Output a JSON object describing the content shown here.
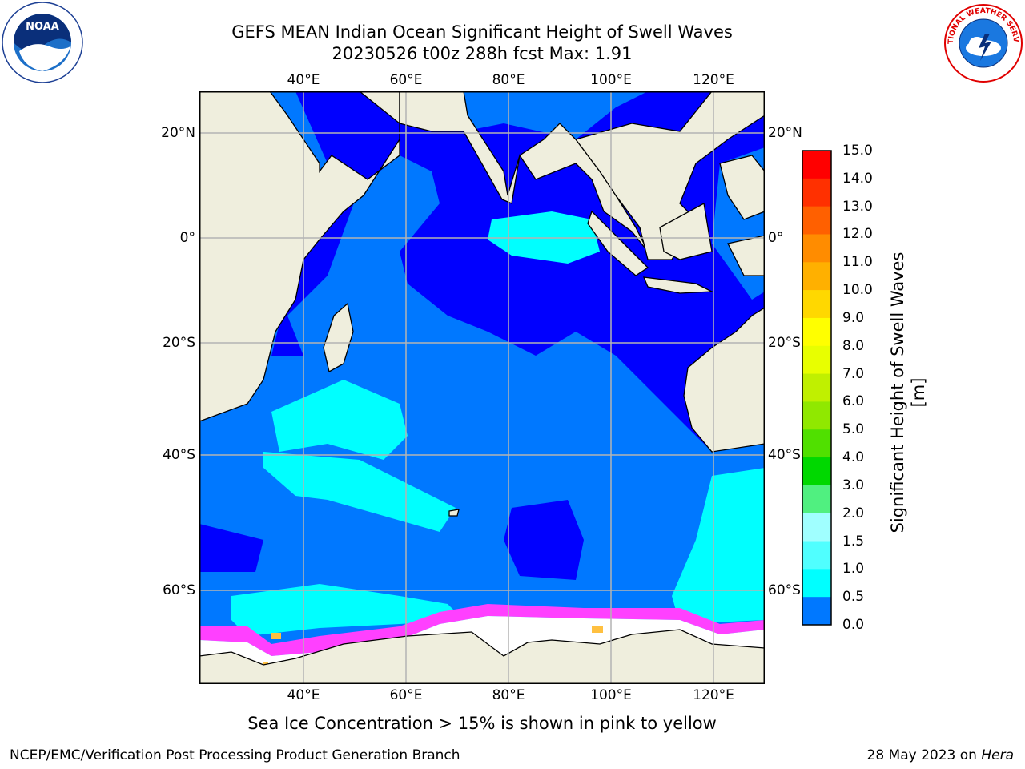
{
  "header": {
    "title_line1": "GEFS MEAN Indian Ocean Significant Height of Swell Waves",
    "title_line2": "20230526 t00z 288h fcst   Max: 1.91"
  },
  "logos": {
    "left": {
      "name": "noaa-logo",
      "text": "NOAA"
    },
    "right": {
      "name": "nws-logo",
      "text": "NATIONAL WEATHER SERVICE"
    }
  },
  "map": {
    "lon_ticks": [
      "40°E",
      "60°E",
      "80°E",
      "100°E",
      "120°E"
    ],
    "lat_ticks": [
      "20°N",
      "0°",
      "20°S",
      "40°S",
      "60°S"
    ],
    "colors": {
      "land": "#efeedd",
      "ocean_dark": "#0000ff",
      "ocean_mid": "#0078ff",
      "ocean_light": "#00ffff",
      "ice_pink": "#ff40ff",
      "ice_yellow": "#ffc040",
      "ice_white": "#ffffff",
      "grid": "#b4b4b4"
    }
  },
  "colorbar": {
    "label": "Significant Height of Swell Waves [m]",
    "ticks": [
      "15.0",
      "14.0",
      "13.0",
      "12.0",
      "11.0",
      "10.0",
      "9.0",
      "8.0",
      "7.0",
      "6.0",
      "5.0",
      "4.0",
      "3.0",
      "2.0",
      "1.5",
      "1.0",
      "0.5",
      "0.0"
    ],
    "colors": [
      "#ff0000",
      "#ff3000",
      "#ff6000",
      "#ff8c00",
      "#ffb000",
      "#ffd800",
      "#ffff00",
      "#e8ff00",
      "#c0f000",
      "#90e800",
      "#50e000",
      "#00d800",
      "#50f080",
      "#a0ffff",
      "#50ffff",
      "#00ffff",
      "#0078ff",
      "#0000ff"
    ]
  },
  "note": "Sea Ice Concentration > 15% is shown in pink to yellow",
  "footer": {
    "left": "NCEP/EMC/Verification Post Processing Product Generation Branch",
    "right_date": "28 May 2023 on ",
    "right_host": "Hera"
  }
}
